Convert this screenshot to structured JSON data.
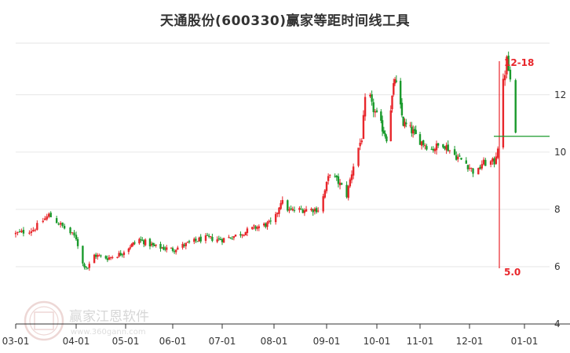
{
  "chart_data": {
    "type": "candlestick",
    "title": "天通股份(600330)赢家等距时间线工具",
    "xlabel": "",
    "ylabel": "",
    "x_tick_labels": [
      "03-01",
      "04-01",
      "05-01",
      "06-01",
      "07-01",
      "08-01",
      "09-01",
      "10-01",
      "11-01",
      "12-01",
      "01-01"
    ],
    "y_ticks": [
      4,
      6,
      8,
      10,
      12
    ],
    "y_tick_labels": [
      "4",
      "6",
      "8",
      "10",
      "12"
    ],
    "ylim": [
      4,
      13.8
    ],
    "grid": true,
    "colors": {
      "up": "#e8262b",
      "down": "#1a9a2c",
      "marker": "#e8262b",
      "projection": "#1a9a2c",
      "grid": "#e6e6e6"
    },
    "price_path": [
      [
        "03-01",
        7.15
      ],
      [
        "03-10",
        7.3
      ],
      [
        "03-18",
        7.8
      ],
      [
        "03-25",
        7.4
      ],
      [
        "04-01",
        7.0
      ],
      [
        "04-05",
        6.1
      ],
      [
        "04-08",
        5.95
      ],
      [
        "04-12",
        6.4
      ],
      [
        "04-20",
        6.3
      ],
      [
        "04-28",
        6.45
      ],
      [
        "05-01",
        6.6
      ],
      [
        "05-10",
        6.95
      ],
      [
        "05-20",
        6.7
      ],
      [
        "06-01",
        6.6
      ],
      [
        "06-10",
        6.8
      ],
      [
        "06-20",
        7.0
      ],
      [
        "07-01",
        6.95
      ],
      [
        "07-10",
        7.1
      ],
      [
        "07-20",
        7.35
      ],
      [
        "08-01",
        7.55
      ],
      [
        "08-05",
        8.3
      ],
      [
        "08-10",
        7.95
      ],
      [
        "08-20",
        8.0
      ],
      [
        "08-28",
        8.0
      ],
      [
        "09-03",
        9.3
      ],
      [
        "09-10",
        8.8
      ],
      [
        "09-13",
        8.5
      ],
      [
        "09-18",
        9.8
      ],
      [
        "09-22",
        10.5
      ],
      [
        "09-25",
        12.4
      ],
      [
        "09-28",
        11.6
      ],
      [
        "10-08",
        10.5
      ],
      [
        "10-14",
        12.6
      ],
      [
        "10-20",
        11.0
      ],
      [
        "10-25",
        10.8
      ],
      [
        "11-01",
        10.4
      ],
      [
        "11-08",
        10.1
      ],
      [
        "11-15",
        10.3
      ],
      [
        "11-22",
        9.9
      ],
      [
        "11-29",
        9.6
      ],
      [
        "12-05",
        9.2
      ],
      [
        "12-08",
        9.6
      ],
      [
        "12-15",
        9.65
      ],
      [
        "12-18",
        10.5
      ],
      [
        "12-20",
        12.4
      ],
      [
        "12-22",
        13.2
      ],
      [
        "12-24",
        12.5
      ],
      [
        "12-26",
        11.5
      ],
      [
        "12-27",
        10.55
      ]
    ],
    "annotations": {
      "marker_date_label": "12-18",
      "low_label": "5.0",
      "projection_value": 10.55
    }
  },
  "watermark": {
    "text": "赢家江恩软件",
    "url": "www.360gann.com"
  }
}
